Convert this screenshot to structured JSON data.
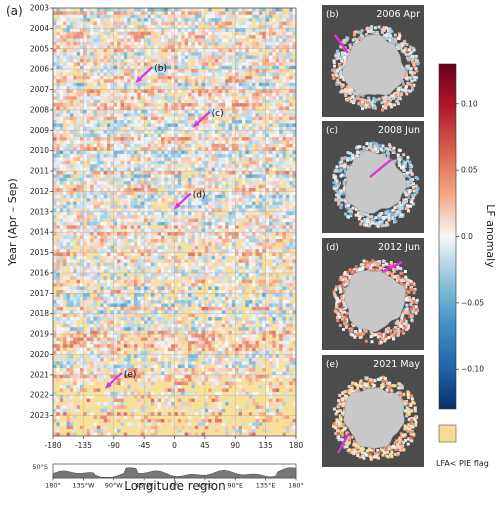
{
  "figure_label": "(a)",
  "chart_data": [
    {
      "type": "heatmap",
      "panel": "(a)",
      "ylabel": "Year (Apr – Sep)",
      "xlabel": "Longitude region",
      "xlim": [
        -180,
        180
      ],
      "x_ticks": [
        -180,
        -135,
        -90,
        -45,
        0,
        45,
        90,
        135,
        180
      ],
      "ylim": [
        2003,
        2024
      ],
      "y_ticks": [
        2003,
        2004,
        2005,
        2006,
        2007,
        2008,
        2009,
        2010,
        2011,
        2012,
        2013,
        2014,
        2015,
        2016,
        2017,
        2018,
        2019,
        2020,
        2021,
        2022,
        2023
      ],
      "grid": true,
      "annotations": [
        {
          "label": "(b)",
          "lon": -30,
          "year": 2005.9
        },
        {
          "label": "(c)",
          "lon": 55,
          "year": 2008.1
        },
        {
          "label": "(d)",
          "lon": 27,
          "year": 2012.1
        },
        {
          "label": "(e)",
          "lon": -75,
          "year": 2020.9
        }
      ]
    },
    {
      "type": "area",
      "ylabel": "50°S",
      "x_ticks": [
        "180°",
        "135°W",
        "90°W",
        "45°W",
        "0°",
        "45°E",
        "90°E",
        "135°E",
        "180°"
      ]
    }
  ],
  "colorbar": {
    "label": "LF anomaly",
    "min": -0.13,
    "max": 0.13,
    "ticks": [
      0.1,
      0.05,
      0.0,
      -0.05,
      -0.1
    ],
    "tick_labels": [
      "0.10",
      "0.05",
      "0.0",
      "−0.05",
      "−0.10"
    ],
    "colors": [
      "#08306b",
      "#2166ac",
      "#4393c3",
      "#92c5de",
      "#f7f7f7",
      "#f4a582",
      "#d6604d",
      "#b2182b",
      "#67001f"
    ]
  },
  "flag_legend": {
    "label": "LFA< PIE flag",
    "color": "#f6dd8f"
  },
  "maps": [
    {
      "label": "(b)",
      "title": "2006 Apr"
    },
    {
      "label": "(c)",
      "title": "2008 Jun"
    },
    {
      "label": "(d)",
      "title": "2012 Jun"
    },
    {
      "label": "(e)",
      "title": "2021 May"
    }
  ],
  "colors": {
    "arrow": "#dd33dd",
    "map_bg": "#4c4c4c",
    "land": "#c8c8c8",
    "flag": "#f6dd8f"
  }
}
